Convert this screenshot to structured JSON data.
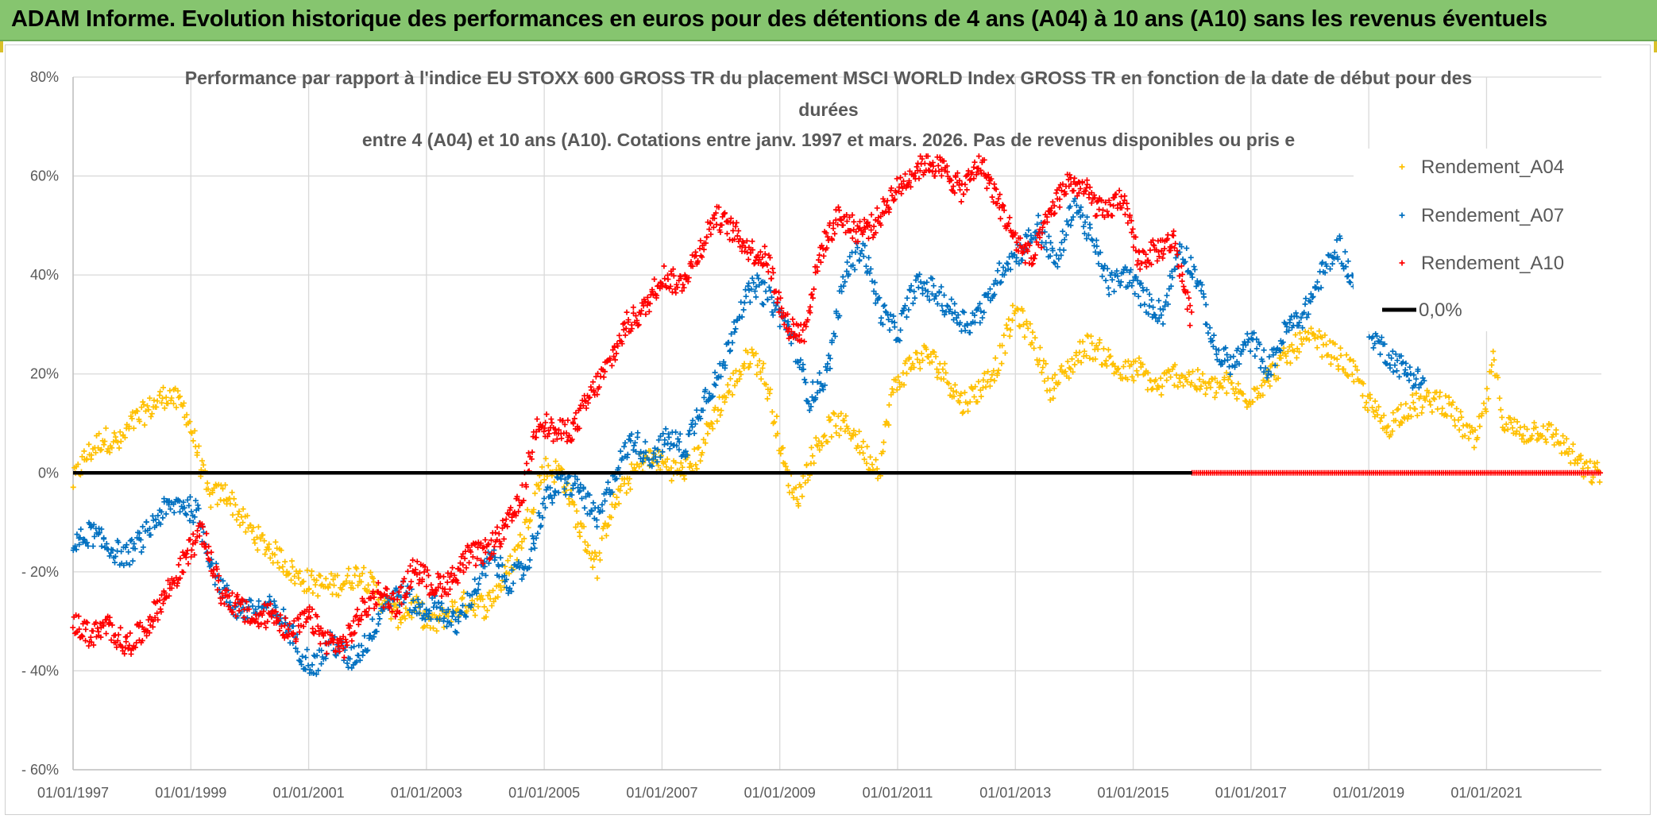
{
  "banner": {
    "title": "ADAM Informe. Evolution historique des performances en euros pour des détentions de 4 ans (A04) à 10 ans (A10) sans les revenus éventuels",
    "background": "#86c56f"
  },
  "chart_data": {
    "type": "scatter",
    "title_lines": [
      "Performance par rapport à l'indice EU STOXX 600 GROSS TR  du placement MSCI WORLD Index GROSS TR en fonction de la date de début pour des",
      "durées",
      "entre 4 (A04) et 10 ans (A10). Cotations entre janv. 1997 et mars. 2026. Pas de revenus disponibles ou pris e"
    ],
    "x_range": [
      1997.0,
      2022.95
    ],
    "x_ticks": [
      "01/01/1997",
      "01/01/1999",
      "01/01/2001",
      "01/01/2003",
      "01/01/2005",
      "01/01/2007",
      "01/01/2009",
      "01/01/2011",
      "01/01/2013",
      "01/01/2015",
      "01/01/2017",
      "01/01/2019",
      "01/01/2021"
    ],
    "x_tick_values": [
      1997,
      1999,
      2001,
      2003,
      2005,
      2007,
      2009,
      2011,
      2013,
      2015,
      2017,
      2019,
      2021
    ],
    "ylim": [
      -60,
      80
    ],
    "y_ticks": [
      "80%",
      "60%",
      "40%",
      "20%",
      "0%",
      "- 20%",
      "- 40%",
      "- 60%"
    ],
    "y_tick_values": [
      80,
      60,
      40,
      20,
      0,
      -20,
      -40,
      -60
    ],
    "grid": true,
    "legend_position": "right",
    "legend": [
      {
        "label": "Rendement_A04",
        "color": "#ffc000",
        "marker": "plus"
      },
      {
        "label": "Rendement_A07",
        "color": "#0070c0",
        "marker": "plus"
      },
      {
        "label": "Rendement_A10",
        "color": "#ff0000",
        "marker": "plus"
      },
      {
        "label": "0,0%",
        "color": "#000000",
        "marker": "line"
      }
    ],
    "series": [
      {
        "name": "Rendement_A04",
        "color": "#ffc000",
        "end_year": 2022.95,
        "x": [
          1997.0,
          1997.2,
          1997.5,
          1997.8,
          1998.0,
          1998.3,
          1998.6,
          1998.9,
          1999.1,
          1999.3,
          1999.6,
          1999.9,
          2000.2,
          2000.5,
          2000.8,
          2001.0,
          2001.3,
          2001.6,
          2001.9,
          2002.2,
          2002.5,
          2002.8,
          2003.1,
          2003.4,
          2003.7,
          2004.0,
          2004.3,
          2004.6,
          2004.8,
          2005.0,
          2005.3,
          2005.6,
          2005.9,
          2006.1,
          2006.4,
          2006.7,
          2007.0,
          2007.3,
          2007.6,
          2007.9,
          2008.2,
          2008.5,
          2008.7,
          2008.9,
          2009.1,
          2009.3,
          2009.6,
          2009.9,
          2010.2,
          2010.5,
          2010.7,
          2010.9,
          2011.2,
          2011.5,
          2011.8,
          2012.1,
          2012.4,
          2012.7,
          2013.0,
          2013.3,
          2013.6,
          2013.9,
          2014.2,
          2014.5,
          2014.8,
          2015.1,
          2015.4,
          2015.7,
          2016.0,
          2016.3,
          2016.6,
          2016.9,
          2017.2,
          2017.5,
          2017.8,
          2018.1,
          2018.4,
          2018.7,
          2019.0,
          2019.3,
          2019.6,
          2019.9,
          2020.2,
          2020.5,
          2020.8,
          2021.0,
          2021.1,
          2021.3,
          2021.6,
          2021.9,
          2022.2,
          2022.5,
          2022.7,
          2022.95
        ],
        "y": [
          -2,
          3,
          7,
          6,
          10,
          13,
          16,
          13,
          5,
          -5,
          -4,
          -10,
          -14,
          -17,
          -21,
          -22,
          -23,
          -22,
          -20,
          -25,
          -29,
          -27,
          -31,
          -28,
          -26,
          -27,
          -22,
          -14,
          -6,
          1,
          0,
          -11,
          -19,
          -8,
          -2,
          3,
          2,
          0,
          3,
          12,
          18,
          24,
          21,
          12,
          0,
          -5,
          5,
          10,
          9,
          3,
          1,
          16,
          22,
          24,
          20,
          14,
          17,
          22,
          33,
          27,
          17,
          21,
          26,
          24,
          20,
          21,
          17,
          20,
          19,
          17,
          18,
          15,
          18,
          22,
          26,
          27,
          24,
          21,
          14,
          9,
          13,
          14,
          15,
          11,
          6,
          14,
          23,
          10,
          8,
          9,
          7,
          3,
          0,
          0
        ]
      },
      {
        "name": "Rendement_A07",
        "color": "#0070c0",
        "end_year": 2019.95,
        "x": [
          1997.0,
          1997.3,
          1997.6,
          1997.9,
          1998.2,
          1998.5,
          1998.8,
          1999.1,
          1999.4,
          1999.7,
          2000.0,
          2000.3,
          2000.6,
          2000.9,
          2001.1,
          2001.4,
          2001.7,
          2002.0,
          2002.3,
          2002.6,
          2002.9,
          2003.2,
          2003.5,
          2003.8,
          2004.1,
          2004.4,
          2004.7,
          2005.0,
          2005.3,
          2005.6,
          2005.9,
          2006.2,
          2006.5,
          2006.8,
          2007.1,
          2007.4,
          2007.7,
          2008.0,
          2008.3,
          2008.6,
          2008.9,
          2009.2,
          2009.5,
          2009.8,
          2010.1,
          2010.4,
          2010.7,
          2011.0,
          2011.3,
          2011.6,
          2011.9,
          2012.2,
          2012.5,
          2012.8,
          2013.1,
          2013.4,
          2013.7,
          2014.0,
          2014.3,
          2014.6,
          2014.9,
          2015.2,
          2015.5,
          2015.8,
          2016.1,
          2016.4,
          2016.7,
          2017.0,
          2017.3,
          2017.6,
          2017.9,
          2018.2,
          2018.5,
          2018.8,
          2019.1,
          2019.4,
          2019.7,
          2019.95
        ],
        "y": [
          -15,
          -12,
          -15,
          -17,
          -13,
          -8,
          -6,
          -8,
          -20,
          -27,
          -28,
          -27,
          -30,
          -37,
          -39,
          -34,
          -38,
          -34,
          -26,
          -24,
          -28,
          -27,
          -31,
          -24,
          -17,
          -22,
          -19,
          -6,
          -2,
          -3,
          -10,
          0,
          7,
          3,
          7,
          5,
          15,
          20,
          33,
          38,
          34,
          28,
          15,
          20,
          40,
          46,
          33,
          28,
          38,
          37,
          33,
          30,
          34,
          42,
          45,
          50,
          42,
          55,
          47,
          38,
          40,
          35,
          32,
          46,
          39,
          24,
          22,
          27,
          21,
          29,
          32,
          40,
          46,
          36,
          27,
          23,
          20,
          18
        ]
      },
      {
        "name": "Rendement_A10",
        "color": "#ff0000",
        "end_year": 2016.0,
        "x": [
          1997.0,
          1997.3,
          1997.6,
          1997.9,
          1998.2,
          1998.5,
          1998.8,
          1999.0,
          1999.2,
          1999.5,
          1999.8,
          2000.1,
          2000.4,
          2000.7,
          2001.0,
          2001.3,
          2001.6,
          2001.9,
          2002.2,
          2002.5,
          2002.8,
          2003.1,
          2003.4,
          2003.7,
          2004.0,
          2004.3,
          2004.6,
          2004.9,
          2005.2,
          2005.5,
          2005.8,
          2006.1,
          2006.4,
          2006.7,
          2007.0,
          2007.3,
          2007.6,
          2007.9,
          2008.2,
          2008.5,
          2008.8,
          2009.1,
          2009.4,
          2009.7,
          2010.0,
          2010.3,
          2010.6,
          2010.9,
          2011.2,
          2011.5,
          2011.8,
          2012.1,
          2012.4,
          2012.7,
          2013.0,
          2013.3,
          2013.6,
          2013.9,
          2014.2,
          2014.5,
          2014.8,
          2015.1,
          2015.4,
          2015.7,
          2016.0
        ],
        "y": [
          -30,
          -33,
          -31,
          -35,
          -32,
          -26,
          -20,
          -15,
          -12,
          -24,
          -27,
          -30,
          -28,
          -33,
          -29,
          -34,
          -35,
          -28,
          -24,
          -27,
          -19,
          -23,
          -22,
          -17,
          -16,
          -12,
          -6,
          11,
          8,
          9,
          16,
          22,
          30,
          33,
          40,
          38,
          44,
          52,
          49,
          45,
          43,
          30,
          28,
          45,
          52,
          49,
          50,
          56,
          60,
          63,
          61,
          57,
          63,
          55,
          47,
          43,
          53,
          59,
          57,
          52,
          56,
          43,
          45,
          47,
          30
        ]
      }
    ],
    "zero_line": {
      "label": "0,0%",
      "value": 0
    },
    "a10_zero_band_start": 2016.0
  }
}
